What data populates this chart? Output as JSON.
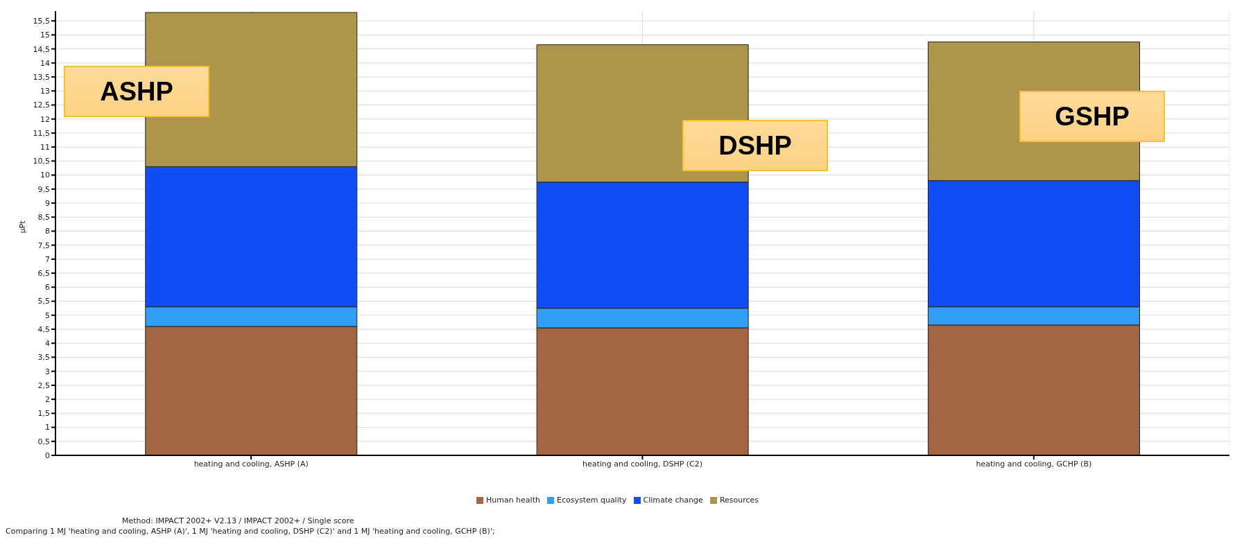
{
  "chart_data": {
    "type": "bar",
    "stacked": true,
    "ylabel": "µPt",
    "categories": [
      "heating and cooling, ASHP (A)",
      "heating and cooling, DSHP (C2)",
      "heating and cooling, GCHP (B)"
    ],
    "series": [
      {
        "name": "Human health",
        "color": "#a36644",
        "values": [
          4.6,
          4.55,
          4.65
        ]
      },
      {
        "name": "Ecosystem quality",
        "color": "#319ef4",
        "values": [
          0.7,
          0.7,
          0.65
        ]
      },
      {
        "name": "Climate change",
        "color": "#114cf4",
        "values": [
          5.0,
          4.5,
          4.5
        ]
      },
      {
        "name": "Resources",
        "color": "#ad954c",
        "values": [
          5.5,
          4.9,
          4.95
        ]
      }
    ],
    "ylim": [
      0,
      15.85
    ],
    "yticks": [
      0,
      {
        "value": 0.5,
        "label": "0,5"
      },
      1,
      {
        "value": 1.5,
        "label": "1,5"
      },
      2,
      {
        "value": 2.5,
        "label": "2,5"
      },
      3,
      {
        "value": 3.5,
        "label": "3,5"
      },
      4,
      {
        "value": 4.5,
        "label": "4,5"
      },
      5,
      {
        "value": 5.5,
        "label": "5,5"
      },
      6,
      {
        "value": 6.5,
        "label": "6,5"
      },
      7,
      {
        "value": 7.5,
        "label": "7,5"
      },
      8,
      {
        "value": 8.5,
        "label": "8,5"
      },
      9,
      {
        "value": 9.5,
        "label": "9,5"
      },
      10,
      {
        "value": 10.5,
        "label": "10,5"
      },
      11,
      {
        "value": 11.5,
        "label": "11,5"
      },
      12,
      {
        "value": 12.5,
        "label": "12,5"
      },
      13,
      {
        "value": 13.5,
        "label": "13,5"
      },
      14,
      {
        "value": 14.5,
        "label": "14,5"
      },
      15,
      {
        "value": 15.5,
        "label": "15,5"
      }
    ],
    "grid": true,
    "legend": "bottom",
    "annotations": [
      "ASHP",
      "DSHP",
      "GSHP",
      "Method: IMPACT 2002+ V2.13 / IMPACT 2002+ / Single score",
      "Comparing 1 MJ 'heating and cooling, ASHP (A)', 1 MJ 'heating and cooling, DSHP (C2)' and 1 MJ 'heating and cooling, GCHP (B)';"
    ]
  }
}
